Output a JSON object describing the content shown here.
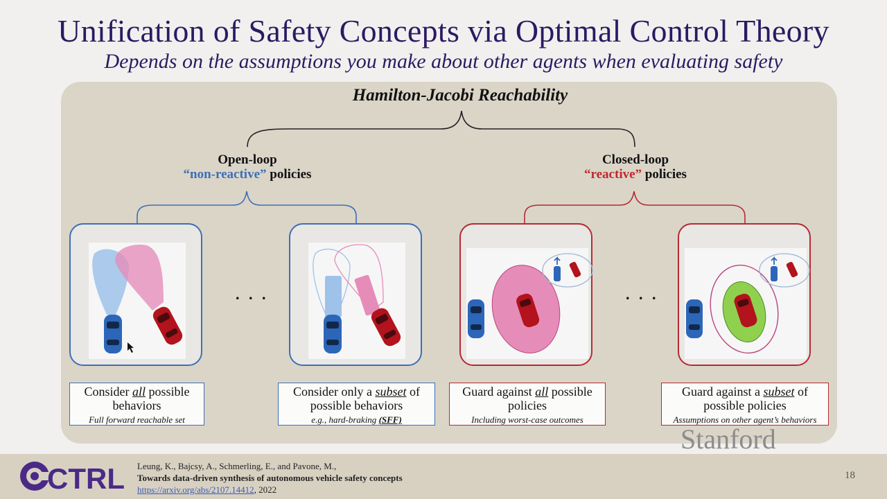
{
  "slide": {
    "title": "Unification of Safety Concepts via Optimal Control Theory",
    "subtitle": "Depends on the assumptions you make about other agents when evaluating safety"
  },
  "diagram": {
    "root": "Hamilton-Jacobi Reachability",
    "open_loop": {
      "line1": "Open-loop",
      "quoted": "“non-reactive”",
      "rest": " policies"
    },
    "closed_loop": {
      "line1": "Closed-loop",
      "quoted": "“reactive”",
      "rest": " policies"
    },
    "ellipsis": ". . .",
    "captions": [
      {
        "pre": "Consider ",
        "em": "all",
        "post": " possible behaviors",
        "note": "Full forward reachable set"
      },
      {
        "pre": "Consider only a ",
        "em": "subset",
        "post": " of possible behaviors",
        "note_pre": "e.g., hard-braking ",
        "note_em": "(SFF)"
      },
      {
        "pre": "Guard against ",
        "em": "all",
        "post": " possible policies",
        "note": "Including worst-case outcomes"
      },
      {
        "pre": "Guard against a ",
        "em": "subset",
        "post": " of possible policies",
        "note": "Assumptions on other agent’s behaviors"
      }
    ]
  },
  "watermark": "Stanford",
  "footer": {
    "logo": "CTRL",
    "authors": "Leung, K., Bajcsy, A., Schmerling, E., and Pavone, M.,",
    "paper": "Towards data-driven synthesis of autonomous vehicle safety concepts",
    "url": "https://arxiv.org/abs/2107.14412",
    "year": ", 2022",
    "page": "18"
  },
  "colors": {
    "title": "#2b1a63",
    "open_loop": "#3d6fb6",
    "closed_loop": "#b52a33",
    "panel": "#dbd5c8"
  }
}
